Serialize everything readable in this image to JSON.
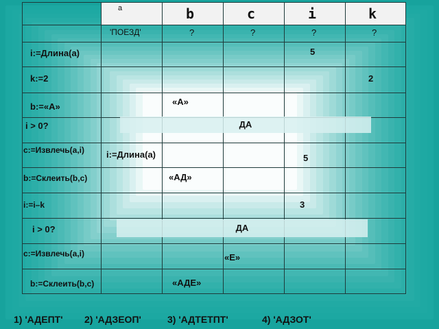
{
  "columns": [
    "a",
    "b",
    "c",
    "i",
    "k"
  ],
  "initial": [
    "'ПОЕЗД'",
    "?",
    "?",
    "?",
    "?"
  ],
  "rows": [
    {
      "op": "i:=Длина(a)",
      "i": "5"
    },
    {
      "op": "k:=2",
      "k": "2"
    },
    {
      "op": "b:=«А»",
      "b": "«А»"
    },
    {
      "op": "i > 0?",
      "band": "ДА"
    },
    {
      "op": "c:=Извлечь(a,i)",
      "note": "i:=Длина(a)",
      "i": "5"
    },
    {
      "op": "b:=Склеить(b,c)",
      "b": "«АД»"
    },
    {
      "op": "i:=i–k",
      "i": "3"
    },
    {
      "op": "i > 0?",
      "band": "ДА"
    },
    {
      "op": "c:=Извлечь(a,i)",
      "c": "«Е»"
    },
    {
      "op": "b:=Склеить(b,c)",
      "b": "«АДЕ»"
    }
  ],
  "answers": [
    "1) 'АДЕПТ'",
    "2) 'АДЗЕОП'",
    "3) 'АДТЕТПТ'",
    "4) 'АДЗОТ'"
  ],
  "colors": {
    "background": "#17a39d",
    "header": "#f2f2f2"
  }
}
